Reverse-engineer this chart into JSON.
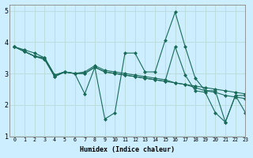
{
  "xlabel": "Humidex (Indice chaleur)",
  "bg_color": "#cceeff",
  "grid_color": "#bbdddd",
  "line_color": "#1a6b5a",
  "xlim": [
    -0.5,
    23
  ],
  "ylim": [
    1,
    5.2
  ],
  "yticks": [
    1,
    2,
    3,
    4,
    5
  ],
  "xticks": [
    0,
    1,
    2,
    3,
    4,
    5,
    6,
    7,
    8,
    9,
    10,
    11,
    12,
    13,
    14,
    15,
    16,
    17,
    18,
    19,
    20,
    21,
    22,
    23
  ],
  "series": [
    [
      3.85,
      3.75,
      3.65,
      3.5,
      2.95,
      3.05,
      3.0,
      2.35,
      3.2,
      1.55,
      1.75,
      3.65,
      3.65,
      3.05,
      3.05,
      4.05,
      4.95,
      3.85,
      2.85,
      2.45,
      2.45,
      1.45,
      2.3,
      2.3
    ],
    [
      3.85,
      3.7,
      3.55,
      3.45,
      2.9,
      3.05,
      3.0,
      3.0,
      3.2,
      3.05,
      3.0,
      2.95,
      2.9,
      2.85,
      2.8,
      2.75,
      2.7,
      2.65,
      2.6,
      2.55,
      2.5,
      2.45,
      2.4,
      2.35
    ],
    [
      3.85,
      3.7,
      3.55,
      3.45,
      2.9,
      3.05,
      3.0,
      3.0,
      3.2,
      3.05,
      3.0,
      2.95,
      2.9,
      2.85,
      2.8,
      2.75,
      3.85,
      2.95,
      2.45,
      2.4,
      1.75,
      1.45,
      2.3,
      1.75
    ],
    [
      3.85,
      3.7,
      3.55,
      3.5,
      2.95,
      3.05,
      3.0,
      3.05,
      3.25,
      3.1,
      3.05,
      3.0,
      2.95,
      2.9,
      2.85,
      2.8,
      2.7,
      2.65,
      2.55,
      2.45,
      2.4,
      2.3,
      2.25,
      2.2
    ]
  ]
}
